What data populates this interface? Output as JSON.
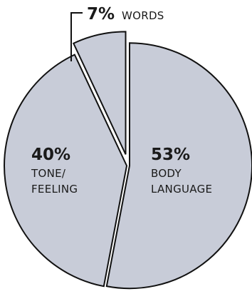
{
  "chart_data": {
    "type": "pie",
    "title": "",
    "slices": [
      {
        "label": "BODY LANGUAGE",
        "label_lines": [
          "BODY",
          "LANGUAGE"
        ],
        "value": 53,
        "value_label": "53%"
      },
      {
        "label": "TONE/ FEELING",
        "label_lines": [
          "TONE/",
          "FEELING"
        ],
        "value": 40,
        "value_label": "40%"
      },
      {
        "label": "WORDS",
        "label_lines": [
          "WORDS"
        ],
        "value": 7,
        "value_label": "7%"
      }
    ],
    "exploded": true,
    "colors": {
      "fill": "#c8ccd8",
      "stroke": "#111111",
      "background": "#ffffff"
    }
  }
}
